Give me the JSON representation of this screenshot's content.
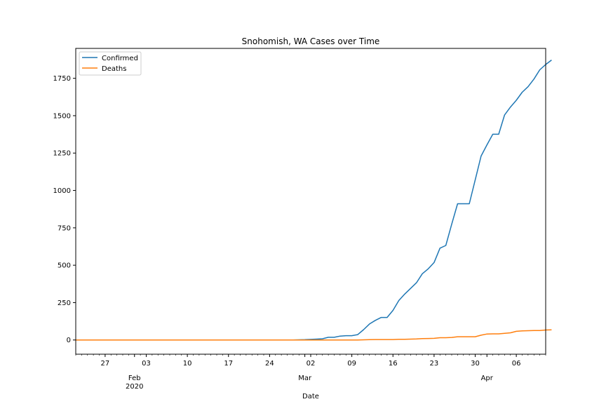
{
  "chart_data": {
    "type": "line",
    "title": "Snohomish, WA Cases over Time",
    "xlabel": "Date",
    "ylabel": "",
    "x_start": "2020-01-22",
    "x_end": "2020-04-11",
    "ylim": [
      -95,
      1950
    ],
    "yticks": [
      0,
      250,
      500,
      750,
      1000,
      1250,
      1500,
      1750
    ],
    "ytick_labels": [
      "0",
      "250",
      "500",
      "750",
      "1000",
      "1250",
      "1500",
      "1750"
    ],
    "major_ticks": [
      {
        "date": "2020-01-27",
        "label": "27"
      },
      {
        "date": "2020-02-03",
        "label": "03"
      },
      {
        "date": "2020-02-10",
        "label": "10"
      },
      {
        "date": "2020-02-17",
        "label": "17"
      },
      {
        "date": "2020-02-24",
        "label": "24"
      },
      {
        "date": "2020-03-02",
        "label": "02"
      },
      {
        "date": "2020-03-09",
        "label": "09"
      },
      {
        "date": "2020-03-16",
        "label": "16"
      },
      {
        "date": "2020-03-23",
        "label": "23"
      },
      {
        "date": "2020-03-30",
        "label": "30"
      },
      {
        "date": "2020-04-06",
        "label": "06"
      }
    ],
    "month_labels": [
      {
        "date": "2020-02-01",
        "label": "Feb",
        "sublabel": "2020"
      },
      {
        "date": "2020-03-01",
        "label": "Mar",
        "sublabel": ""
      },
      {
        "date": "2020-04-01",
        "label": "Apr",
        "sublabel": ""
      }
    ],
    "legend_position": "top-left",
    "grid": false,
    "series": [
      {
        "name": "Confirmed",
        "color": "#1f77b4",
        "points": [
          [
            "2020-01-22",
            0
          ],
          [
            "2020-02-28",
            0
          ],
          [
            "2020-02-29",
            1
          ],
          [
            "2020-03-01",
            2
          ],
          [
            "2020-03-02",
            4
          ],
          [
            "2020-03-03",
            6
          ],
          [
            "2020-03-04",
            8
          ],
          [
            "2020-03-05",
            18
          ],
          [
            "2020-03-06",
            18
          ],
          [
            "2020-03-07",
            26
          ],
          [
            "2020-03-08",
            29
          ],
          [
            "2020-03-09",
            29
          ],
          [
            "2020-03-10",
            36
          ],
          [
            "2020-03-11",
            69
          ],
          [
            "2020-03-12",
            107
          ],
          [
            "2020-03-13",
            131
          ],
          [
            "2020-03-14",
            151
          ],
          [
            "2020-03-15",
            151
          ],
          [
            "2020-03-16",
            198
          ],
          [
            "2020-03-17",
            264
          ],
          [
            "2020-03-18",
            307
          ],
          [
            "2020-03-19",
            345
          ],
          [
            "2020-03-20",
            383
          ],
          [
            "2020-03-21",
            443
          ],
          [
            "2020-03-22",
            476
          ],
          [
            "2020-03-23",
            518
          ],
          [
            "2020-03-24",
            614
          ],
          [
            "2020-03-25",
            632
          ],
          [
            "2020-03-26",
            774
          ],
          [
            "2020-03-27",
            911
          ],
          [
            "2020-03-28",
            911
          ],
          [
            "2020-03-29",
            911
          ],
          [
            "2020-03-30",
            1070
          ],
          [
            "2020-03-31",
            1230
          ],
          [
            "2020-04-01",
            1305
          ],
          [
            "2020-04-02",
            1376
          ],
          [
            "2020-04-03",
            1376
          ],
          [
            "2020-04-04",
            1505
          ],
          [
            "2020-04-05",
            1558
          ],
          [
            "2020-04-06",
            1603
          ],
          [
            "2020-04-07",
            1657
          ],
          [
            "2020-04-08",
            1694
          ],
          [
            "2020-04-09",
            1745
          ],
          [
            "2020-04-10",
            1807
          ],
          [
            "2020-04-11",
            1842
          ],
          [
            "2020-04-12",
            1872
          ]
        ]
      },
      {
        "name": "Deaths",
        "color": "#ff7f0e",
        "points": [
          [
            "2020-01-22",
            0
          ],
          [
            "2020-03-10",
            0
          ],
          [
            "2020-03-11",
            1
          ],
          [
            "2020-03-12",
            2
          ],
          [
            "2020-03-13",
            3
          ],
          [
            "2020-03-14",
            3
          ],
          [
            "2020-03-15",
            3
          ],
          [
            "2020-03-16",
            3
          ],
          [
            "2020-03-17",
            5
          ],
          [
            "2020-03-18",
            5
          ],
          [
            "2020-03-19",
            6
          ],
          [
            "2020-03-20",
            7
          ],
          [
            "2020-03-21",
            9
          ],
          [
            "2020-03-22",
            10
          ],
          [
            "2020-03-23",
            11
          ],
          [
            "2020-03-24",
            15
          ],
          [
            "2020-03-25",
            15
          ],
          [
            "2020-03-26",
            17
          ],
          [
            "2020-03-27",
            22
          ],
          [
            "2020-03-28",
            22
          ],
          [
            "2020-03-29",
            22
          ],
          [
            "2020-03-30",
            22
          ],
          [
            "2020-03-31",
            32
          ],
          [
            "2020-04-01",
            40
          ],
          [
            "2020-04-02",
            41
          ],
          [
            "2020-04-03",
            41
          ],
          [
            "2020-04-04",
            45
          ],
          [
            "2020-04-05",
            48
          ],
          [
            "2020-04-06",
            58
          ],
          [
            "2020-04-07",
            61
          ],
          [
            "2020-04-08",
            62
          ],
          [
            "2020-04-09",
            63
          ],
          [
            "2020-04-10",
            63
          ],
          [
            "2020-04-11",
            67
          ],
          [
            "2020-04-12",
            68
          ]
        ]
      }
    ]
  }
}
